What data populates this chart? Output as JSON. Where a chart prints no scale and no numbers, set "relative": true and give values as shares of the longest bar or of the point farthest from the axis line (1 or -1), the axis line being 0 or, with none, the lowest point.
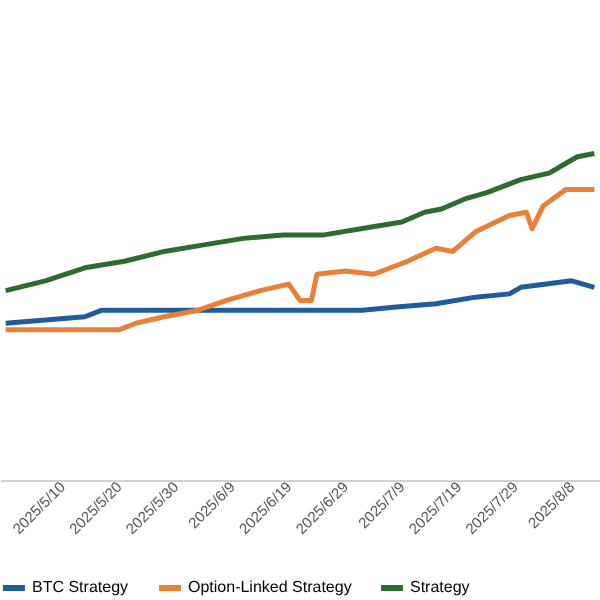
{
  "chart_data": {
    "type": "line",
    "relative": true,
    "legend": "bottom",
    "grid": false,
    "marker": "none",
    "line_style": "solid",
    "xlim": [
      "2025-04-29",
      "2025-08-13"
    ],
    "xticks": [
      {
        "value": "2025-05-10",
        "label": "2025/5/10"
      },
      {
        "value": "2025-05-20",
        "label": "2025/5/20"
      },
      {
        "value": "2025-05-30",
        "label": "2025/5/30"
      },
      {
        "value": "2025-06-09",
        "label": "2025/6/9"
      },
      {
        "value": "2025-06-19",
        "label": "2025/6/19"
      },
      {
        "value": "2025-06-29",
        "label": "2025/6/29"
      },
      {
        "value": "2025-07-09",
        "label": "2025/7/9"
      },
      {
        "value": "2025-07-19",
        "label": "2025/7/19"
      },
      {
        "value": "2025-07-29",
        "label": "2025/7/29"
      },
      {
        "value": "2025-08-08",
        "label": "2025/8/8"
      }
    ],
    "series": [
      {
        "name": "BTC Strategy",
        "color": "#1f5c99",
        "x": [
          "2025-04-30",
          "2025-05-14",
          "2025-05-17",
          "2025-06-11",
          "2025-07-02",
          "2025-07-08",
          "2025-07-15",
          "2025-07-22",
          "2025-07-28",
          "2025-07-30",
          "2025-08-08",
          "2025-08-12"
        ],
        "values": [
          0.48,
          0.5,
          0.52,
          0.52,
          0.52,
          0.53,
          0.54,
          0.56,
          0.57,
          0.59,
          0.61,
          0.59
        ]
      },
      {
        "name": "Option-Linked Strategy",
        "color": "#e8803a",
        "x": [
          "2025-04-30",
          "2025-05-20",
          "2025-05-23",
          "2025-05-28",
          "2025-06-03",
          "2025-06-08",
          "2025-06-14",
          "2025-06-19",
          "2025-06-21",
          "2025-06-23",
          "2025-06-24",
          "2025-06-29",
          "2025-07-04",
          "2025-07-10",
          "2025-07-15",
          "2025-07-18",
          "2025-07-22",
          "2025-07-28",
          "2025-07-31",
          "2025-08-01",
          "2025-08-03",
          "2025-08-07",
          "2025-08-12"
        ],
        "values": [
          0.46,
          0.46,
          0.48,
          0.5,
          0.52,
          0.55,
          0.58,
          0.6,
          0.55,
          0.55,
          0.63,
          0.64,
          0.63,
          0.67,
          0.71,
          0.7,
          0.76,
          0.81,
          0.82,
          0.77,
          0.84,
          0.89,
          0.89
        ]
      },
      {
        "name": "Strategy",
        "color": "#2e6b30",
        "x": [
          "2025-04-30",
          "2025-05-07",
          "2025-05-14",
          "2025-05-21",
          "2025-05-28",
          "2025-06-04",
          "2025-06-11",
          "2025-06-18",
          "2025-06-25",
          "2025-07-02",
          "2025-07-09",
          "2025-07-13",
          "2025-07-16",
          "2025-07-20",
          "2025-07-24",
          "2025-07-30",
          "2025-08-04",
          "2025-08-07",
          "2025-08-09",
          "2025-08-12"
        ],
        "values": [
          0.58,
          0.61,
          0.65,
          0.67,
          0.7,
          0.72,
          0.74,
          0.75,
          0.75,
          0.77,
          0.79,
          0.82,
          0.83,
          0.86,
          0.88,
          0.92,
          0.94,
          0.97,
          0.99,
          1.0
        ]
      }
    ]
  }
}
